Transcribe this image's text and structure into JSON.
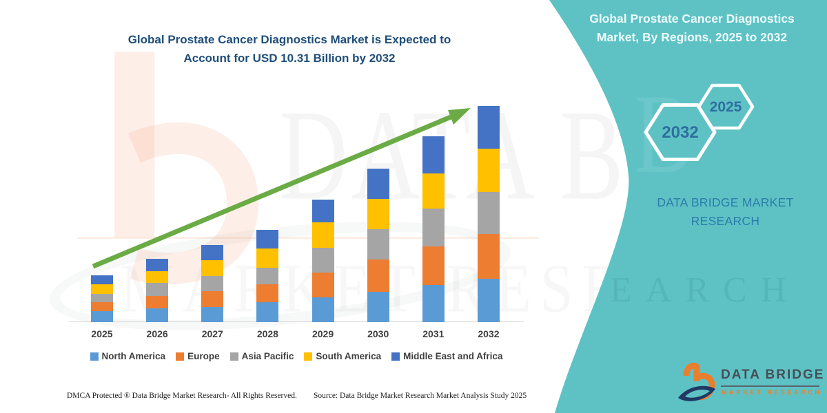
{
  "left_panel": {
    "title_line1": "Global Prostate Cancer Diagnostics Market is Expected to",
    "title_line2": "Account for USD 10.31 Billion by 2032"
  },
  "chart_data": {
    "type": "bar",
    "stacked": true,
    "title": "Global Prostate Cancer Diagnostics Market is Expected to Account for USD 10.31 Billion by 2032",
    "value_unit": "USD Billion",
    "xlabel": "",
    "ylabel": "",
    "y_axis_visible": false,
    "grid": false,
    "legend_position": "bottom",
    "baseline_color": "#D8D8D8",
    "trend_arrow_color": "#6BAB45",
    "categories": [
      "2025",
      "2026",
      "2027",
      "2028",
      "2029",
      "2030",
      "2031",
      "2032"
    ],
    "series": [
      {
        "name": "North America",
        "color": "#5B9BD5",
        "values": [
          0.52,
          0.66,
          0.74,
          0.94,
          1.17,
          1.45,
          1.79,
          2.08
        ]
      },
      {
        "name": "Europe",
        "color": "#ED7D31",
        "values": [
          0.44,
          0.6,
          0.74,
          0.86,
          1.21,
          1.53,
          1.81,
          2.11
        ]
      },
      {
        "name": "Asia Pacific",
        "color": "#A5A5A5",
        "values": [
          0.38,
          0.6,
          0.74,
          0.8,
          1.17,
          1.45,
          1.81,
          2.0
        ]
      },
      {
        "name": "South America",
        "color": "#FFC000",
        "values": [
          0.46,
          0.58,
          0.74,
          0.9,
          1.22,
          1.44,
          1.67,
          2.08
        ]
      },
      {
        "name": "Middle East and Africa",
        "color": "#4472C4",
        "values": [
          0.42,
          0.57,
          0.74,
          0.91,
          1.06,
          1.45,
          1.79,
          2.04
        ]
      }
    ],
    "totals": [
      2.22,
      3.01,
      3.7,
      4.41,
      5.83,
      7.32,
      8.87,
      10.31
    ],
    "highlight_total_2032": "USD 10.31 Billion"
  },
  "right_panel": {
    "panel_color": "#5EC2C5",
    "title_line1": "Global Prostate Cancer Diagnostics",
    "title_line2": "Market, By Regions, 2025 to 2032",
    "hexagon_large_year": "2032",
    "hexagon_small_year": "2025",
    "brand_line1": "DATA BRIDGE MARKET",
    "brand_line2": "RESEARCH",
    "logo": {
      "name_text": "DATA BRIDGE",
      "subtitle_text": "MARKET RESEARCH"
    }
  },
  "footer": {
    "dmca_text": "DMCA Protected ® Data Bridge Market Research-  All Rights Reserved.",
    "source_text": "Source: Data Bridge Market Research  Market Analysis Study 2025"
  },
  "watermarks": {
    "big_text_top": "DATA BRI",
    "big_text_bottom": "MARKET RESE",
    "teal_text_top": "B",
    "teal_text_bottom": "EARCH"
  }
}
